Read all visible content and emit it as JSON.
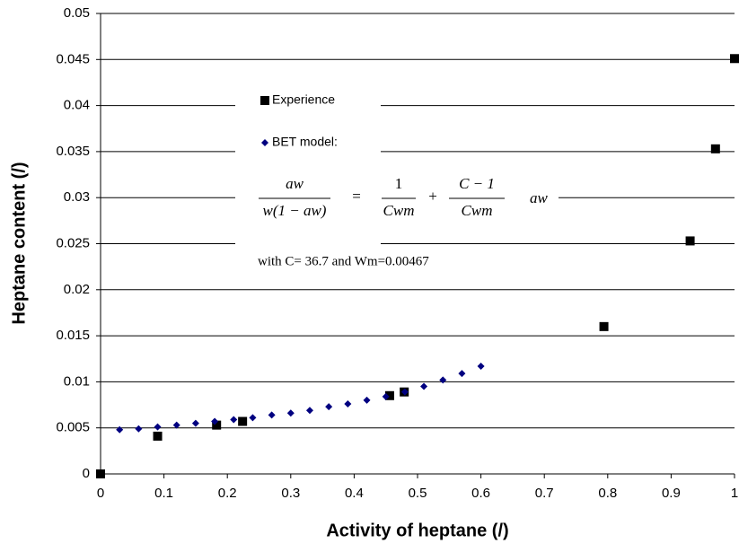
{
  "chart_data": {
    "type": "scatter",
    "x_label": "Activity of heptane (/)",
    "y_label": "Heptane content (/)",
    "xlim": [
      0,
      1
    ],
    "xticks": [
      0,
      0.1,
      0.2,
      0.3,
      0.4,
      0.5,
      0.6,
      0.7,
      0.8,
      0.9,
      1
    ],
    "ylim": [
      0,
      0.05
    ],
    "yticks": [
      0,
      0.005,
      0.01,
      0.015,
      0.02,
      0.025,
      0.03,
      0.035,
      0.04,
      0.045,
      0.05
    ],
    "grid": true,
    "series": [
      {
        "name": "Experience",
        "color": "#000000",
        "marker": "square",
        "x": [
          0,
          0.09,
          0.183,
          0.224,
          0.456,
          0.479,
          0.794,
          0.93,
          0.97,
          1.0
        ],
        "values": [
          0,
          0.0041,
          0.0053,
          0.0057,
          0.0085,
          0.0089,
          0.016,
          0.0253,
          0.0353,
          0.0451
        ]
      },
      {
        "name": "BET model:",
        "color": "#000080",
        "marker": "diamond",
        "x": [
          0.03,
          0.06,
          0.09,
          0.12,
          0.15,
          0.18,
          0.21,
          0.24,
          0.27,
          0.3,
          0.33,
          0.36,
          0.39,
          0.42,
          0.45,
          0.48,
          0.51,
          0.54,
          0.57,
          0.6
        ],
        "values": [
          0.0048,
          0.0049,
          0.0051,
          0.0053,
          0.0055,
          0.0057,
          0.0059,
          0.0061,
          0.0064,
          0.0066,
          0.0069,
          0.0073,
          0.0076,
          0.008,
          0.0084,
          0.0089,
          0.0095,
          0.0102,
          0.0109,
          0.0117
        ]
      }
    ],
    "formula": [
      "aw",
      "w(1 − aw)",
      "=",
      "1",
      "Cwm",
      "+",
      "C − 1",
      "Cwm",
      "aw"
    ],
    "annotation": "with  C= 36.7 and Wm=0.00467"
  }
}
